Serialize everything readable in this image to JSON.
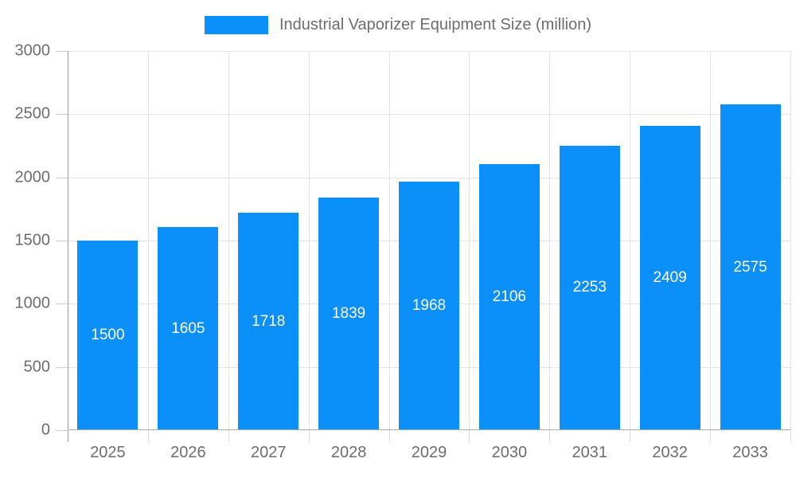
{
  "legend": {
    "label": "Industrial Vaporizer Equipment Size (million)",
    "swatch_color": "#0b90f9"
  },
  "chart_data": {
    "type": "bar",
    "title": "Industrial Vaporizer Equipment Size (million)",
    "categories": [
      "2025",
      "2026",
      "2027",
      "2028",
      "2029",
      "2030",
      "2031",
      "2032",
      "2033"
    ],
    "values": [
      1500,
      1605,
      1718,
      1839,
      1968,
      2106,
      2253,
      2409,
      2575
    ],
    "series": [
      {
        "name": "Industrial Vaporizer Equipment Size (million)",
        "values": [
          1500,
          1605,
          1718,
          1839,
          1968,
          2106,
          2253,
          2409,
          2575
        ]
      }
    ],
    "xlabel": "",
    "ylabel": "",
    "ylim": [
      0,
      3000
    ],
    "yticks": [
      0,
      500,
      1000,
      1500,
      2000,
      2500,
      3000
    ],
    "grid": true,
    "legend_position": "top",
    "bar_labels_inside": true,
    "colors": {
      "bar": "#0b90f9",
      "bar_label": "#ffffff",
      "axis_text": "#6d6d6d",
      "gridline": "#e3e3e3",
      "axis_line": "#9c9c9c"
    }
  }
}
